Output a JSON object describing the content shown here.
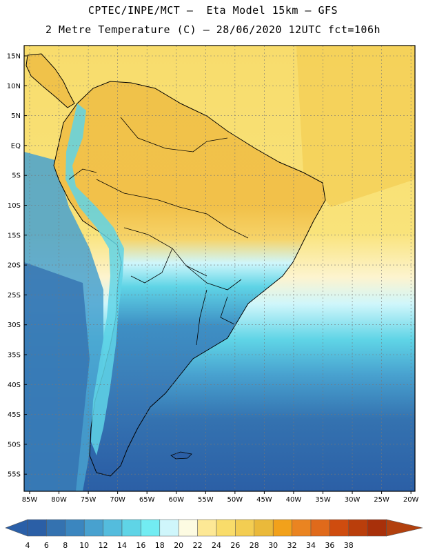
{
  "header": {
    "line1": "CPTEC/INPE/MCT –  Eta Model 15km – GFS",
    "line2": "2 Metre Temperature (C) – 28/06/2020 12UTC fct=106h"
  },
  "map": {
    "lat_labels": [
      "15N",
      "10N",
      "5N",
      "EQ",
      "5S",
      "10S",
      "15S",
      "20S",
      "25S",
      "30S",
      "35S",
      "40S",
      "45S",
      "50S",
      "55S"
    ],
    "lon_labels": [
      "85W",
      "80W",
      "75W",
      "70W",
      "65W",
      "60W",
      "55W",
      "50W",
      "45W",
      "40W",
      "35W",
      "30W",
      "25W",
      "20W"
    ],
    "grid": true
  },
  "colorbar": {
    "ticks": [
      "4",
      "6",
      "8",
      "10",
      "12",
      "14",
      "16",
      "18",
      "20",
      "22",
      "24",
      "26",
      "28",
      "30",
      "32",
      "34",
      "36",
      "38"
    ],
    "colors": [
      "#2b5fa6",
      "#3472b0",
      "#3b86bf",
      "#48a1cf",
      "#54bcdd",
      "#5fd4e6",
      "#72ecf2",
      "#cff6fb",
      "#fdfbe2",
      "#fde895",
      "#f9dc6a",
      "#f3cd52",
      "#eab93a",
      "#f2a11b",
      "#ea8421",
      "#e06a1b",
      "#cf4c0f",
      "#ba3e0b",
      "#a8300a"
    ],
    "under_color": "#2a5fa8",
    "over_color": "#b2400e"
  }
}
